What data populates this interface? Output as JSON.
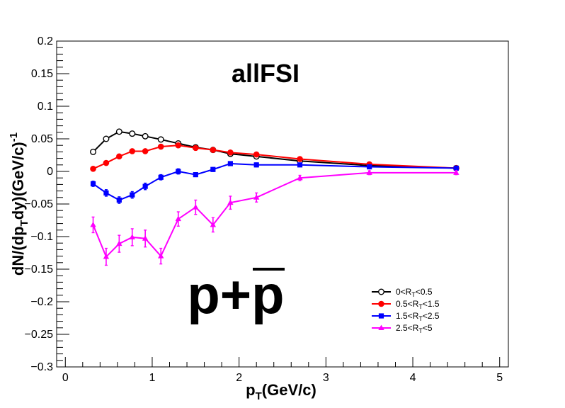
{
  "chart_data": {
    "type": "line",
    "title": "allFSI",
    "annotation": "p+p̄",
    "annotation_main": "p+p",
    "xlabel": {
      "main": "p",
      "sub": "T",
      "rest": "(GeV/c)"
    },
    "ylabel": {
      "part1": "dN/(dp",
      "sub": "T",
      "part2": "dy)(GeV/c)",
      "sup": "-1"
    },
    "xlim": [
      -0.1,
      5.1
    ],
    "ylim": [
      -0.3,
      0.2
    ],
    "x_ticks": [
      0,
      1,
      2,
      3,
      4,
      5
    ],
    "x_tick_labels": [
      "0",
      "1",
      "2",
      "3",
      "4",
      "5"
    ],
    "y_ticks": [
      0.2,
      0.15,
      0.1,
      0.05,
      0,
      -0.05,
      -0.1,
      -0.15,
      -0.2,
      -0.25,
      -0.3
    ],
    "y_tick_labels": [
      "0.2",
      "0.15",
      "0.1",
      "0.05",
      "0",
      "−0.05",
      "−0.1",
      "−0.15",
      "−0.2",
      "−0.25",
      "−0.3"
    ],
    "legend_position": "bottom-right",
    "grid": false,
    "series": [
      {
        "name": "0<R_T<0.5",
        "legend": {
          "a": "0<R",
          "sub": "T",
          "b": "<0.5"
        },
        "color": "#000000",
        "marker": "open-circle",
        "x": [
          0.32,
          0.47,
          0.62,
          0.77,
          0.92,
          1.1,
          1.3,
          1.5,
          1.7,
          1.9,
          2.2,
          2.7,
          3.5,
          4.5
        ],
        "y": [
          0.03,
          0.05,
          0.061,
          0.058,
          0.054,
          0.049,
          0.043,
          0.037,
          0.033,
          0.027,
          0.023,
          0.016,
          0.009,
          0.005
        ],
        "err": [
          0.003,
          0.003,
          0.003,
          0.003,
          0.003,
          0.003,
          0.002,
          0.002,
          0.002,
          0.002,
          0.002,
          0.002,
          0.002,
          0.002
        ]
      },
      {
        "name": "0.5<R_T<1.5",
        "legend": {
          "a": "0.5<R",
          "sub": "T",
          "b": "<1.5"
        },
        "color": "#ff0000",
        "marker": "filled-circle",
        "x": [
          0.32,
          0.47,
          0.62,
          0.77,
          0.92,
          1.1,
          1.3,
          1.5,
          1.7,
          1.9,
          2.2,
          2.7,
          3.5,
          4.5
        ],
        "y": [
          0.004,
          0.013,
          0.023,
          0.031,
          0.031,
          0.038,
          0.04,
          0.036,
          0.033,
          0.029,
          0.026,
          0.019,
          0.011,
          0.005
        ],
        "err": [
          0.002,
          0.002,
          0.002,
          0.002,
          0.002,
          0.002,
          0.002,
          0.002,
          0.002,
          0.002,
          0.002,
          0.002,
          0.002,
          0.001
        ]
      },
      {
        "name": "1.5<R_T<2.5",
        "legend": {
          "a": "1.5<R",
          "sub": "T",
          "b": "<2.5"
        },
        "color": "#0000ff",
        "marker": "filled-square",
        "x": [
          0.32,
          0.47,
          0.62,
          0.77,
          0.92,
          1.1,
          1.3,
          1.5,
          1.7,
          1.9,
          2.2,
          2.7,
          3.5,
          4.5
        ],
        "y": [
          -0.019,
          -0.033,
          -0.044,
          -0.036,
          -0.023,
          -0.009,
          0.0,
          -0.005,
          0.003,
          0.012,
          0.01,
          0.01,
          0.007,
          0.005
        ],
        "err": [
          0.004,
          0.005,
          0.005,
          0.005,
          0.005,
          0.004,
          0.004,
          0.003,
          0.003,
          0.003,
          0.003,
          0.002,
          0.002,
          0.002
        ]
      },
      {
        "name": "2.5<R_T<5",
        "legend": {
          "a": "2.5<R",
          "sub": "T",
          "b": "<5"
        },
        "color": "#ff00ff",
        "marker": "filled-triangle",
        "x": [
          0.32,
          0.47,
          0.62,
          0.77,
          0.92,
          1.1,
          1.3,
          1.5,
          1.7,
          1.9,
          2.2,
          2.7,
          3.5,
          4.5
        ],
        "y": [
          -0.082,
          -0.131,
          -0.111,
          -0.101,
          -0.103,
          -0.13,
          -0.073,
          -0.055,
          -0.082,
          -0.048,
          -0.04,
          -0.01,
          -0.002,
          -0.002
        ],
        "err": [
          0.012,
          0.013,
          0.013,
          0.013,
          0.013,
          0.012,
          0.011,
          0.011,
          0.011,
          0.01,
          0.007,
          0.004,
          0.003,
          0.003
        ]
      }
    ]
  }
}
